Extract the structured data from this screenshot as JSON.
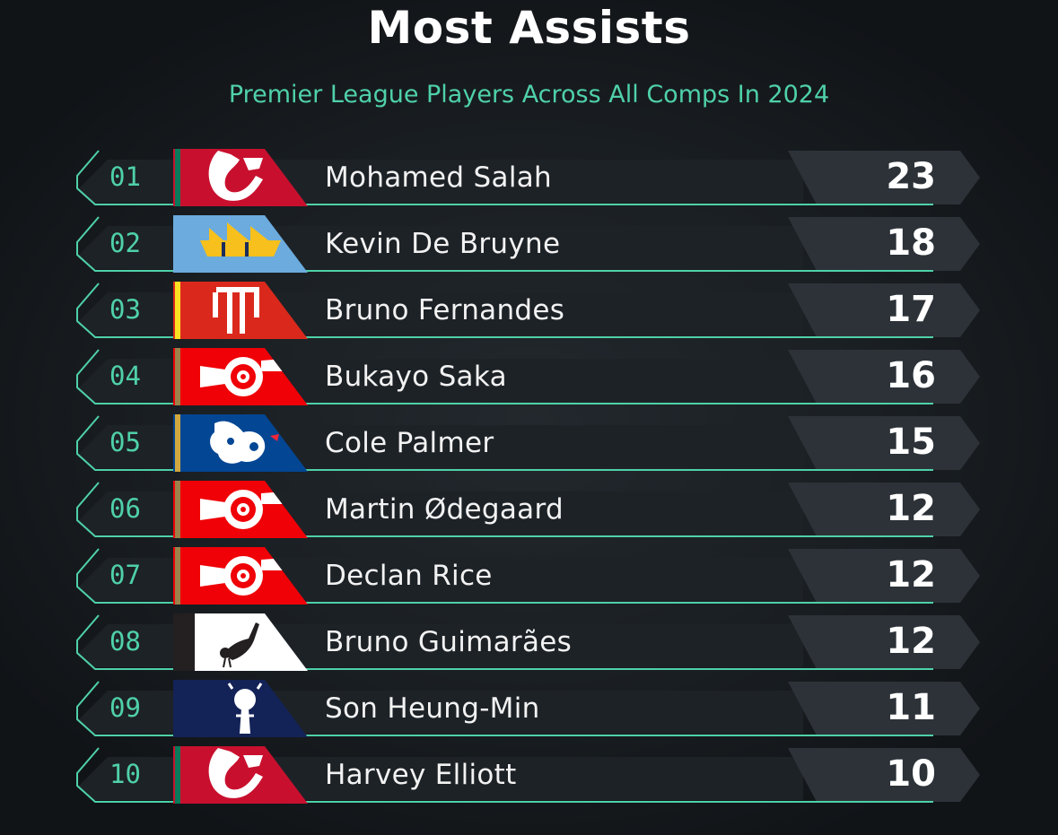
{
  "header": {
    "title": "Most Assists",
    "subtitle": "Premier League Players Across All Comps In 2024"
  },
  "colors": {
    "accent": "#4fd1a8",
    "background": "#15191d",
    "row": "#1d2227",
    "value_panel": "#2c3238"
  },
  "players": [
    {
      "rank": "01",
      "name": "Mohamed Salah",
      "assists": "23",
      "crest": "liverpool-crest-icon"
    },
    {
      "rank": "02",
      "name": "Kevin De Bruyne",
      "assists": "18",
      "crest": "man-city-crest-icon"
    },
    {
      "rank": "03",
      "name": "Bruno Fernandes",
      "assists": "17",
      "crest": "man-united-crest-icon"
    },
    {
      "rank": "04",
      "name": "Bukayo Saka",
      "assists": "16",
      "crest": "arsenal-crest-icon"
    },
    {
      "rank": "05",
      "name": "Cole Palmer",
      "assists": "15",
      "crest": "chelsea-crest-icon"
    },
    {
      "rank": "06",
      "name": "Martin Ødegaard",
      "assists": "12",
      "crest": "arsenal-crest-icon"
    },
    {
      "rank": "07",
      "name": "Declan Rice",
      "assists": "12",
      "crest": "arsenal-crest-icon"
    },
    {
      "rank": "08",
      "name": "Bruno Guimarães",
      "assists": "12",
      "crest": "newcastle-crest-icon"
    },
    {
      "rank": "09",
      "name": "Son Heung-Min",
      "assists": "11",
      "crest": "tottenham-crest-icon"
    },
    {
      "rank": "10",
      "name": "Harvey Elliott",
      "assists": "10",
      "crest": "liverpool-crest-icon"
    }
  ]
}
